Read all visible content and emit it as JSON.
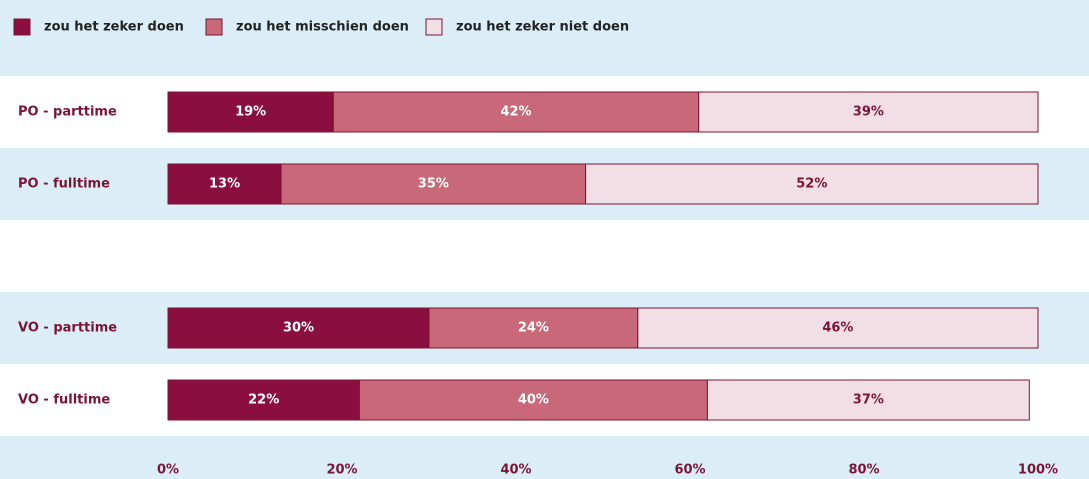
{
  "chart_data": {
    "type": "stacked-bar",
    "orientation": "horizontal",
    "categories": [
      "PO - parttime",
      "PO - fulltime",
      null,
      "VO - parttime",
      "VO - fulltime"
    ],
    "series": [
      {
        "name": "zou het zeker doen",
        "color": "#8b0f3e",
        "values": [
          19,
          13,
          null,
          30,
          22
        ],
        "value_labels": [
          "19%",
          "13%",
          null,
          "30%",
          "22%"
        ]
      },
      {
        "name": "zou het misschien doen",
        "color": "#c96878",
        "values": [
          42,
          35,
          null,
          24,
          40
        ],
        "value_labels": [
          "42%",
          "35%",
          null,
          "24%",
          "40%"
        ]
      },
      {
        "name": "zou het zeker niet doen",
        "color": "#f2dfe5",
        "values": [
          39,
          52,
          null,
          46,
          37
        ],
        "value_labels": [
          "39%",
          "52%",
          null,
          "46%",
          "37%"
        ]
      }
    ],
    "xlim": [
      0,
      100
    ],
    "xticks": [
      {
        "value": 0,
        "label": "0%"
      },
      {
        "value": 20,
        "label": "20%"
      },
      {
        "value": 40,
        "label": "40%"
      },
      {
        "value": 60,
        "label": "60%"
      },
      {
        "value": 80,
        "label": "80%"
      },
      {
        "value": 100,
        "label": "100%"
      }
    ],
    "legend": "top-left"
  }
}
